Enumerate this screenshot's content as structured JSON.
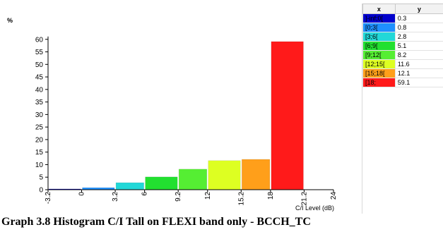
{
  "chart_data": {
    "type": "bar",
    "ylabel": "%",
    "xlabel": "C/I Level (dB)",
    "ylim": [
      0,
      65
    ],
    "yticks": [
      0,
      5,
      10,
      15,
      20,
      25,
      30,
      35,
      40,
      45,
      50,
      55,
      60
    ],
    "xlim": [
      -3.2,
      24
    ],
    "xticks": [
      {
        "value": -3.2,
        "label": "-3.2"
      },
      {
        "value": 0,
        "label": "0"
      },
      {
        "value": 3.2,
        "label": "3.2"
      },
      {
        "value": 6,
        "label": "6"
      },
      {
        "value": 9.2,
        "label": "9.2"
      },
      {
        "value": 12,
        "label": "12"
      },
      {
        "value": 15.2,
        "label": "15.2"
      },
      {
        "value": 18,
        "label": "18"
      },
      {
        "value": 21.2,
        "label": "21.2"
      },
      {
        "value": 24,
        "label": "24"
      }
    ],
    "bars": [
      {
        "label": "]-inf;0[",
        "x0": -3.2,
        "x1": 0,
        "value": 0.3,
        "color": "#0000cc"
      },
      {
        "label": "[0;3[",
        "x0": 0,
        "x1": 3.2,
        "value": 0.8,
        "color": "#1e90ff"
      },
      {
        "label": "[3;6[",
        "x0": 3.2,
        "x1": 6,
        "value": 2.8,
        "color": "#22d8d8"
      },
      {
        "label": "[6;9[",
        "x0": 6,
        "x1": 9.2,
        "value": 5.1,
        "color": "#22e030"
      },
      {
        "label": "[9;12[",
        "x0": 9.2,
        "x1": 12,
        "value": 8.2,
        "color": "#55ee33"
      },
      {
        "label": "[12;15[",
        "x0": 12,
        "x1": 15.2,
        "value": 11.6,
        "color": "#ddff22"
      },
      {
        "label": "[15;18[",
        "x0": 15.2,
        "x1": 18,
        "value": 12.1,
        "color": "#ff9f1a"
      },
      {
        "label": "[18;",
        "x0": 18,
        "x1": 21.2,
        "value": 59.1,
        "color": "#ff1a1a"
      }
    ]
  },
  "legend_table": {
    "headers": [
      "x",
      "y"
    ],
    "rows": [
      {
        "x": "]-inf;0[",
        "y": "0.3",
        "color": "#0000cc"
      },
      {
        "x": "[0;3[",
        "y": "0.8",
        "color": "#1e90ff"
      },
      {
        "x": "[3;6[",
        "y": "2.8",
        "color": "#22d8d8"
      },
      {
        "x": "[6;9[",
        "y": "5.1",
        "color": "#22e030"
      },
      {
        "x": "[9;12[",
        "y": "8.2",
        "color": "#55ee33"
      },
      {
        "x": "[12;15[",
        "y": "11.6",
        "color": "#ddff22"
      },
      {
        "x": "[15;18[",
        "y": "12.1",
        "color": "#ff9f1a"
      },
      {
        "x": "[18;",
        "y": "59.1",
        "color": "#ff1a1a"
      }
    ]
  },
  "caption": "Graph 3.8 Histogram C/I Tall on FLEXI band only - BCCH_TC"
}
